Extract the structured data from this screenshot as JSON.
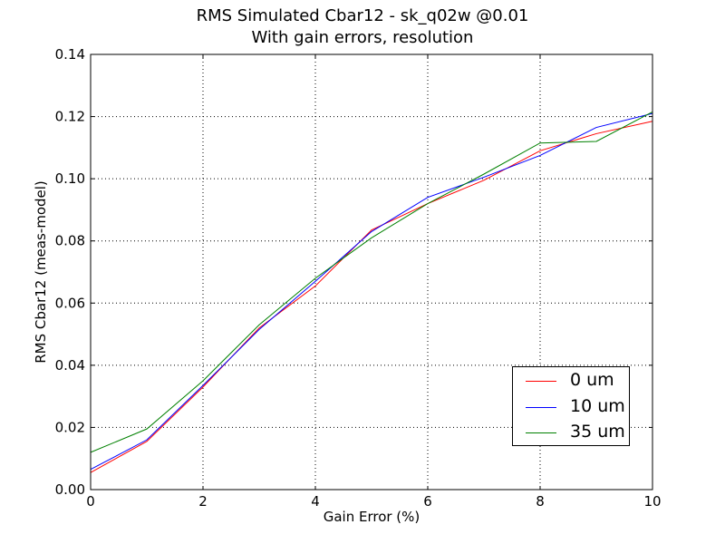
{
  "chart_data": {
    "type": "line",
    "title": "RMS Simulated Cbar12 - sk_q02w @0.01",
    "subtitle": "With gain errors, resolution",
    "xlabel": "Gain Error (%)",
    "ylabel": "RMS Cbar12 (meas-model)",
    "xlim": [
      0,
      10
    ],
    "ylim": [
      0,
      0.14
    ],
    "xticks": [
      0,
      2,
      4,
      6,
      8,
      10
    ],
    "xtick_labels": [
      "0",
      "2",
      "4",
      "6",
      "8",
      "10"
    ],
    "yticks": [
      0,
      0.02,
      0.04,
      0.06,
      0.08,
      0.1,
      0.12,
      0.14
    ],
    "ytick_labels": [
      "0.00",
      "0.02",
      "0.04",
      "0.06",
      "0.08",
      "0.10",
      "0.12",
      "0.14"
    ],
    "grid": true,
    "legend_position": "lower-right",
    "x": [
      0,
      1,
      2,
      3,
      4,
      5,
      6,
      7,
      8,
      9,
      10
    ],
    "series": [
      {
        "name": "0 um",
        "color": "#ff0000",
        "values": [
          0.0055,
          0.0155,
          0.033,
          0.052,
          0.0655,
          0.0835,
          0.092,
          0.0995,
          0.109,
          0.1145,
          0.1185
        ]
      },
      {
        "name": "10 um",
        "color": "#0000ff",
        "values": [
          0.0065,
          0.016,
          0.0335,
          0.0515,
          0.067,
          0.083,
          0.094,
          0.1005,
          0.1075,
          0.1165,
          0.121
        ]
      },
      {
        "name": "35 um",
        "color": "#008000",
        "values": [
          0.012,
          0.0195,
          0.035,
          0.053,
          0.068,
          0.081,
          0.092,
          0.1015,
          0.1115,
          0.112,
          0.1215
        ]
      }
    ]
  }
}
